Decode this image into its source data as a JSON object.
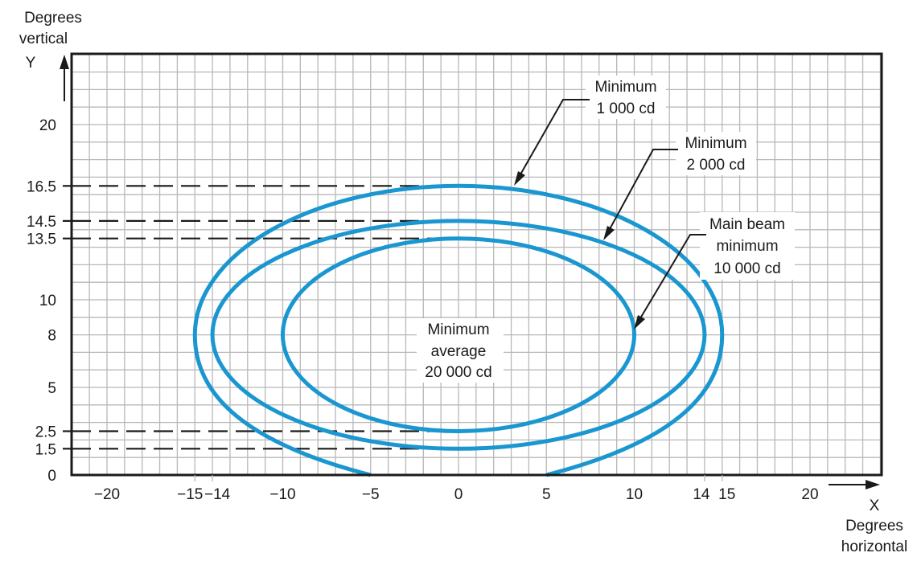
{
  "chart_data": {
    "type": "diagram",
    "x_axis": {
      "letter": "X",
      "label_lines": [
        "Degrees",
        "horizontal"
      ],
      "range": [
        -22,
        24
      ],
      "ticks": [
        "−20",
        "−15",
        "−14",
        "−10",
        "−5",
        "0",
        "5",
        "10",
        "14",
        "15",
        "20"
      ],
      "tick_values": [
        -20,
        -15,
        -14,
        -10,
        -5,
        0,
        5,
        10,
        14,
        15,
        20
      ]
    },
    "y_axis": {
      "letter": "Y",
      "label_lines": [
        "Degrees",
        "vertical"
      ],
      "range": [
        0,
        24
      ],
      "ticks": [
        "20",
        "16.5",
        "14.5",
        "13.5",
        "10",
        "8",
        "5",
        "2.5",
        "1.5",
        "0"
      ],
      "tick_values": [
        20,
        16.5,
        14.5,
        13.5,
        10,
        8,
        5,
        2.5,
        1.5,
        0
      ]
    },
    "contours": [
      {
        "name": "1000cd",
        "label_lines": [
          "Minimum",
          "1 000 cd"
        ],
        "x_range": [
          -15,
          15
        ],
        "center_y": 8,
        "top": 16.5,
        "bottom": 0,
        "open_bottom_x": [
          -5,
          5
        ]
      },
      {
        "name": "2000cd",
        "label_lines": [
          "Minimum",
          "2 000 cd"
        ],
        "x_range": [
          -14,
          14
        ],
        "center_y": 8,
        "top": 14.5,
        "bottom": 1.5
      },
      {
        "name": "10000cd",
        "label_lines": [
          "Main beam",
          "minimum",
          "10 000 cd"
        ],
        "x_range": [
          -10,
          10
        ],
        "center_y": 8,
        "top": 13.5,
        "bottom": 2.5
      }
    ],
    "center_label_lines": [
      "Minimum",
      "average",
      "20 000 cd"
    ],
    "guide_lines_y": [
      16.5,
      14.5,
      13.5,
      2.5,
      1.5
    ],
    "curve_color": "#1a96d0"
  }
}
